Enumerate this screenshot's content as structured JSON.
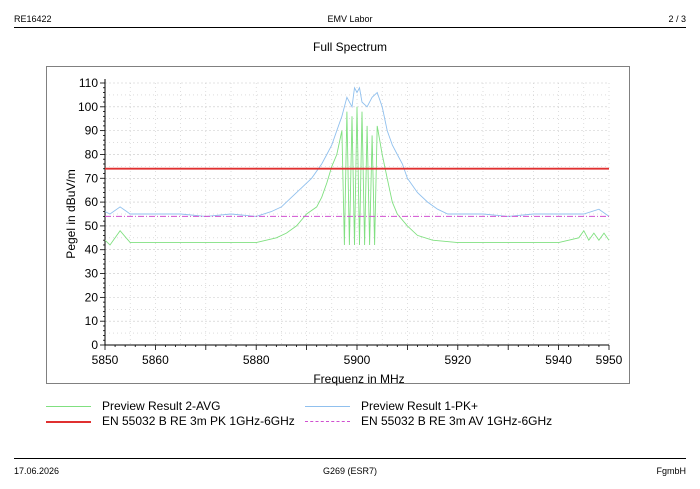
{
  "header": {
    "left": "RE16422",
    "center": "EMV Labor",
    "right": "2 / 3"
  },
  "footer": {
    "left": "17.06.2026",
    "center": "G269 (ESR7)",
    "right": "FgmbH"
  },
  "colors": {
    "avg": "#80e080",
    "pk": "#90c0ee",
    "limit_pk": "#e03030",
    "limit_av": "#d050d0"
  },
  "chart_data": {
    "type": "line",
    "title": "Full Spectrum",
    "xlabel": "Frequenz in MHz",
    "ylabel": "Pegel in dBuV/m",
    "xlim": [
      5850,
      5950
    ],
    "ylim": [
      0,
      110
    ],
    "x_ticks": [
      "5850",
      "5860",
      "5880",
      "5900",
      "5920",
      "5940",
      "5950"
    ],
    "y_ticks": [
      "0",
      "10",
      "20",
      "30",
      "40",
      "50",
      "60",
      "70",
      "80",
      "90",
      "100",
      "110"
    ],
    "grid": true,
    "legend": [
      {
        "label": "Preview Result 2-AVG",
        "color": "#80e080",
        "style": "solid"
      },
      {
        "label": "Preview Result 1-PK+",
        "color": "#90c0ee",
        "style": "solid"
      },
      {
        "label": "EN 55032 B RE 3m PK 1GHz-6GHz",
        "color": "#e03030",
        "style": "solid"
      },
      {
        "label": "EN 55032 B RE 3m AV 1GHz-6GHz",
        "color": "#d050d0",
        "style": "dashdot"
      }
    ],
    "series": [
      {
        "name": "Preview Result 1-PK+",
        "points": [
          [
            5850,
            56
          ],
          [
            5851,
            55
          ],
          [
            5853,
            58
          ],
          [
            5855,
            55
          ],
          [
            5860,
            55
          ],
          [
            5865,
            55
          ],
          [
            5870,
            54
          ],
          [
            5875,
            55
          ],
          [
            5880,
            54
          ],
          [
            5883,
            56
          ],
          [
            5885,
            58
          ],
          [
            5887,
            62
          ],
          [
            5889,
            66
          ],
          [
            5891,
            70
          ],
          [
            5893,
            76
          ],
          [
            5894,
            80
          ],
          [
            5895,
            84
          ],
          [
            5896,
            90
          ],
          [
            5897,
            96
          ],
          [
            5898,
            104
          ],
          [
            5899,
            100
          ],
          [
            5899.5,
            108
          ],
          [
            5900,
            106
          ],
          [
            5900.5,
            108
          ],
          [
            5901,
            102
          ],
          [
            5902,
            100
          ],
          [
            5903,
            104
          ],
          [
            5904,
            106
          ],
          [
            5905,
            100
          ],
          [
            5906,
            90
          ],
          [
            5907,
            84
          ],
          [
            5908,
            80
          ],
          [
            5909,
            76
          ],
          [
            5910,
            70
          ],
          [
            5912,
            64
          ],
          [
            5914,
            60
          ],
          [
            5916,
            57
          ],
          [
            5918,
            55
          ],
          [
            5925,
            55
          ],
          [
            5930,
            54
          ],
          [
            5935,
            55
          ],
          [
            5940,
            55
          ],
          [
            5945,
            55
          ],
          [
            5948,
            57
          ],
          [
            5950,
            54
          ]
        ]
      },
      {
        "name": "Preview Result 2-AVG",
        "points": [
          [
            5850,
            44
          ],
          [
            5851,
            42
          ],
          [
            5853,
            48
          ],
          [
            5855,
            43
          ],
          [
            5860,
            43
          ],
          [
            5870,
            43
          ],
          [
            5880,
            43
          ],
          [
            5882,
            44
          ],
          [
            5884,
            45
          ],
          [
            5886,
            47
          ],
          [
            5888,
            50
          ],
          [
            5890,
            55
          ],
          [
            5892,
            58
          ],
          [
            5893,
            62
          ],
          [
            5894,
            68
          ],
          [
            5895,
            75
          ],
          [
            5896,
            80
          ],
          [
            5897,
            90
          ],
          [
            5897.5,
            42
          ],
          [
            5898,
            98
          ],
          [
            5898.5,
            42
          ],
          [
            5899,
            96
          ],
          [
            5899.5,
            42
          ],
          [
            5900,
            100
          ],
          [
            5900.5,
            42
          ],
          [
            5901,
            98
          ],
          [
            5901.5,
            42
          ],
          [
            5902,
            92
          ],
          [
            5902.5,
            42
          ],
          [
            5903,
            88
          ],
          [
            5903.5,
            42
          ],
          [
            5904,
            92
          ],
          [
            5905,
            80
          ],
          [
            5906,
            70
          ],
          [
            5907,
            60
          ],
          [
            5908,
            55
          ],
          [
            5910,
            50
          ],
          [
            5912,
            46
          ],
          [
            5915,
            44
          ],
          [
            5920,
            43
          ],
          [
            5940,
            43
          ],
          [
            5944,
            45
          ],
          [
            5945,
            48
          ],
          [
            5946,
            44
          ],
          [
            5947,
            47
          ],
          [
            5948,
            44
          ],
          [
            5949,
            47
          ],
          [
            5950,
            44
          ]
        ]
      },
      {
        "name": "EN 55032 B RE 3m PK 1GHz-6GHz",
        "points": [
          [
            5850,
            74
          ],
          [
            5950,
            74
          ]
        ]
      },
      {
        "name": "EN 55032 B RE 3m AV 1GHz-6GHz",
        "points": [
          [
            5850,
            54
          ],
          [
            5950,
            54
          ]
        ]
      }
    ]
  }
}
